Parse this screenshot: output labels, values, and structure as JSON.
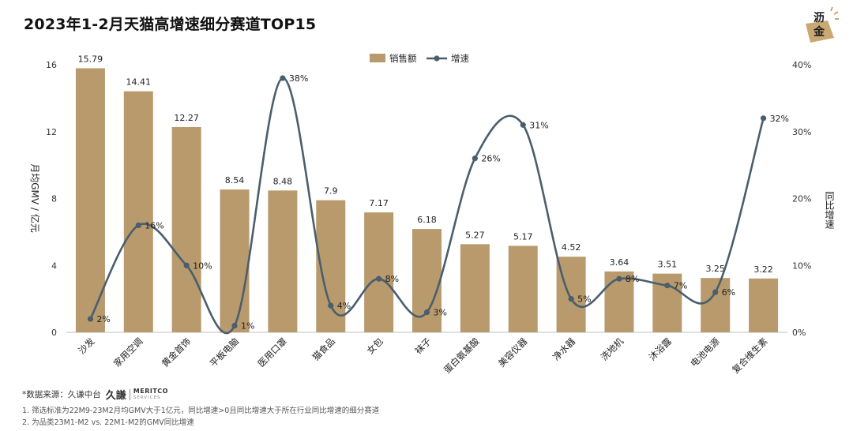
{
  "header": {
    "title": "2023年1-2月天猫高增速细分赛道TOP15"
  },
  "logo": {
    "line1": "沥",
    "line2": "金"
  },
  "footer": {
    "source_label": "*数据来源：久谦中台",
    "source_logo_cn": "久謙",
    "source_logo_en": "MERITCO",
    "source_logo_en_sub": "SERVICES",
    "note1": "1. 筛选标准为22M9-23M2月均GMV大于1亿元，同比增速>0且同比增速大于所在行业同比增速的细分赛道",
    "note2": "2. 为品类23M1-M2 vs. 22M1-M2的GMV同比增速"
  },
  "chart_data": {
    "type": "bar",
    "categories": [
      "沙发",
      "家用空调",
      "黄金首饰",
      "平板电脑",
      "医用口罩",
      "猫食品",
      "女包",
      "袜子",
      "蛋白氨基酸",
      "美容仪器",
      "净水器",
      "洗地机",
      "沐浴露",
      "电池电源",
      "复合维生素"
    ],
    "series": [
      {
        "name": "销售额",
        "type": "bar",
        "color": "#B89A6C",
        "values": [
          15.79,
          14.41,
          12.27,
          8.54,
          8.48,
          7.9,
          7.17,
          6.18,
          5.27,
          5.17,
          4.52,
          3.64,
          3.51,
          3.25,
          3.22
        ],
        "labels": [
          "15.79",
          "14.41",
          "12.27",
          "8.54",
          "8.48",
          "7.9",
          "7.17",
          "6.18",
          "5.27",
          "5.17",
          "4.52",
          "3.64",
          "3.51",
          "3.25",
          "3.22"
        ]
      },
      {
        "name": "增速",
        "type": "line",
        "color": "#4A5E6D",
        "values": [
          2,
          16,
          10,
          1,
          38,
          4,
          8,
          3,
          26,
          31,
          5,
          8,
          7,
          6,
          32
        ],
        "labels": [
          "2%",
          "16%",
          "10%",
          "1%",
          "38%",
          "4%",
          "8%",
          "3%",
          "26%",
          "31%",
          "5%",
          "8%",
          "7%",
          "6%",
          "32%"
        ]
      }
    ],
    "ylabel": "月均GMV / 亿元",
    "y2label": "同比增速",
    "ylim": [
      0,
      16
    ],
    "yticks": [
      "0",
      "4",
      "8",
      "12",
      "16"
    ],
    "y2lim": [
      0,
      40
    ],
    "y2ticks": [
      "0%",
      "10%",
      "20%",
      "30%",
      "40%"
    ],
    "legend": "top-center",
    "grid": false
  }
}
